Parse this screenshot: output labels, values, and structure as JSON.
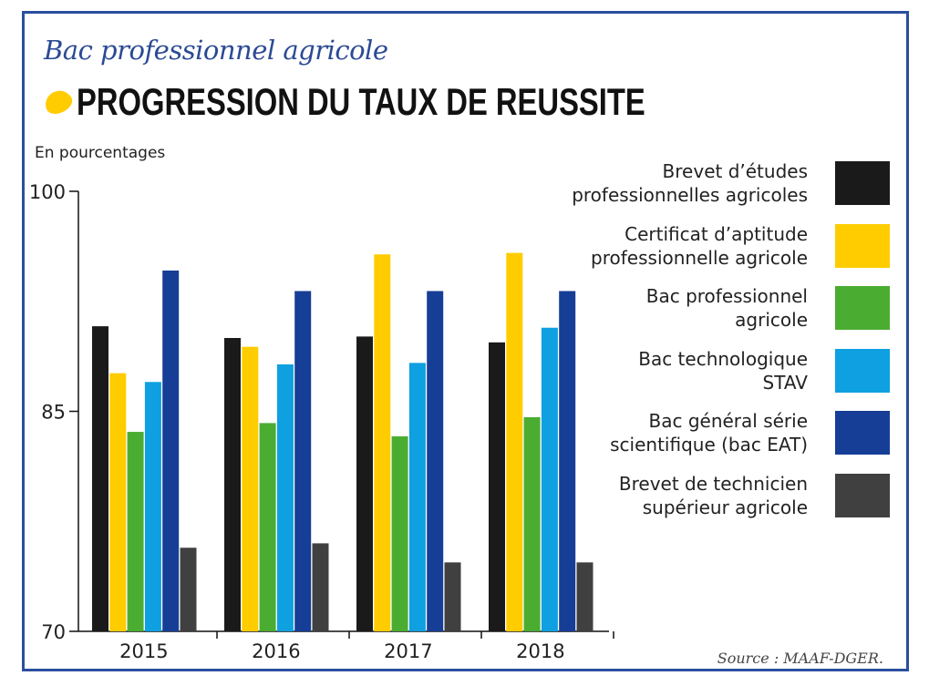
{
  "header": {
    "subtitle": "Bac professionnel agricole",
    "title": "PROGRESSION DU TAUX DE REUSSITE"
  },
  "units_label": "En pourcentages",
  "source": "Source : MAAF-DGER.",
  "colors": {
    "frame": "#2a4f9e",
    "accent": "#ffcc00"
  },
  "chart_data": {
    "type": "bar",
    "categories": [
      "2015",
      "2016",
      "2017",
      "2018"
    ],
    "ylim": [
      70,
      100
    ],
    "yticks": [
      70,
      85,
      100
    ],
    "grid": false,
    "legend_position": "right",
    "series": [
      {
        "name": "Brevet d’études\nprofessionnelles agricoles",
        "color": "#1a1a1a",
        "values": [
          90.8,
          90.0,
          90.1,
          89.7
        ]
      },
      {
        "name": "Certificat d’aptitude\nprofessionnelle agricole",
        "color": "#ffcc00",
        "values": [
          87.6,
          89.4,
          95.7,
          95.8
        ]
      },
      {
        "name": "Bac professionnel\nagricole",
        "color": "#4aad32",
        "values": [
          83.6,
          84.2,
          83.3,
          84.6
        ]
      },
      {
        "name": "Bac technologique\nSTAV",
        "color": "#0ea0e0",
        "values": [
          87.0,
          88.2,
          88.3,
          90.7
        ]
      },
      {
        "name": "Bac général série\nscientifique (bac EAT)",
        "color": "#163e96",
        "values": [
          94.6,
          93.2,
          93.2,
          93.2
        ]
      },
      {
        "name": "Brevet de technicien\nsupérieur agricole",
        "color": "#404040",
        "values": [
          75.7,
          76.0,
          74.7,
          74.7
        ]
      }
    ]
  }
}
